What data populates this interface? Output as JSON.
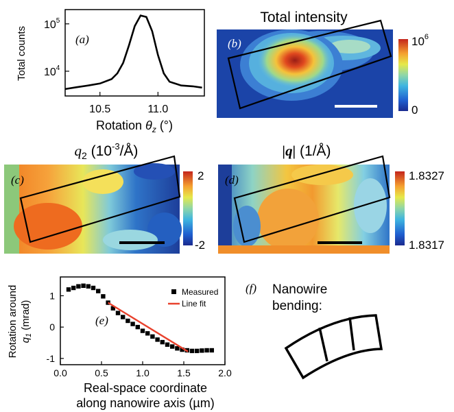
{
  "panels": {
    "a": {
      "label": "(a)",
      "ylabel": "Total counts",
      "xlabel_prefix": "Rotation ",
      "xlabel_symbol": "θ",
      "xlabel_sub": "z",
      "xlabel_unit": " (°)"
    },
    "b": {
      "label": "(b)",
      "title": "Total intensity",
      "colorbar_max_base": "10",
      "colorbar_max_exp": "6",
      "colorbar_min": "0"
    },
    "c": {
      "label": "(c)",
      "title_sym": "q",
      "title_sub": "2",
      "title_unit_pre": " (10",
      "title_unit_exp": "-3",
      "title_unit_post": "/Å)",
      "colorbar_max": "2",
      "colorbar_min": "-2"
    },
    "d": {
      "label": "(d)",
      "title_sym": "|q|",
      "title_unit": " (1/Å)",
      "colorbar_max": "1.8327",
      "colorbar_min": "1.8317"
    },
    "e": {
      "label": "(e)",
      "ylabel_line1": "Rotation around",
      "ylabel_line2_sym": "q",
      "ylabel_line2_sub": "1",
      "ylabel_line2_unit": " (mrad)",
      "xlabel_line1": "Real-space coordinate",
      "xlabel_line2": "along nanowire axis (µm)",
      "legend_measured": "Measured",
      "legend_fit": "Line fit"
    },
    "f": {
      "label": "(f)",
      "text_line1": "Nanowire",
      "text_line2": "bending:"
    }
  },
  "colors": {
    "fit_line": "#e8412c",
    "marker": "#000000",
    "scale_bar_b": "#ffffff",
    "scale_bar_cd": "#000000"
  },
  "chart_data": [
    {
      "type": "line",
      "panel": "a",
      "yscale": "log",
      "xlim": [
        10.2,
        11.4
      ],
      "ylim": [
        3000,
        200000
      ],
      "x_ticks": [
        "10.5",
        "11.0"
      ],
      "y_ticks": [
        {
          "base": "10",
          "exp": "4"
        },
        {
          "base": "10",
          "exp": "5"
        }
      ],
      "x": [
        10.2,
        10.3,
        10.4,
        10.5,
        10.6,
        10.65,
        10.7,
        10.75,
        10.8,
        10.85,
        10.9,
        10.95,
        11.0,
        11.05,
        11.1,
        11.2,
        11.3,
        11.38
      ],
      "y": [
        4200,
        4600,
        5000,
        5500,
        6800,
        9000,
        15000,
        35000,
        90000,
        150000,
        140000,
        70000,
        22000,
        9000,
        6000,
        5000,
        4800,
        4500
      ]
    },
    {
      "type": "scatter",
      "panel": "e",
      "xlim": [
        0,
        2.0
      ],
      "ylim": [
        -1.2,
        1.6
      ],
      "x_ticks": [
        "0.0",
        "0.5",
        "1.0",
        "1.5",
        "2.0"
      ],
      "y_ticks": [
        "1",
        "0",
        "-1"
      ],
      "series": [
        {
          "name": "Measured",
          "x": [
            0.1,
            0.16,
            0.22,
            0.28,
            0.34,
            0.4,
            0.46,
            0.52,
            0.58,
            0.64,
            0.7,
            0.76,
            0.82,
            0.88,
            0.94,
            1.0,
            1.06,
            1.12,
            1.18,
            1.24,
            1.3,
            1.36,
            1.42,
            1.48,
            1.54,
            1.6,
            1.66,
            1.72,
            1.78,
            1.84
          ],
          "y": [
            1.2,
            1.25,
            1.3,
            1.32,
            1.3,
            1.25,
            1.15,
            0.98,
            0.78,
            0.6,
            0.45,
            0.32,
            0.2,
            0.1,
            0.0,
            -0.12,
            -0.2,
            -0.3,
            -0.4,
            -0.48,
            -0.56,
            -0.62,
            -0.68,
            -0.72,
            -0.74,
            -0.76,
            -0.76,
            -0.75,
            -0.74,
            -0.74
          ]
        },
        {
          "name": "Line fit",
          "x": [
            0.58,
            1.55
          ],
          "y": [
            0.78,
            -0.78
          ]
        }
      ]
    }
  ]
}
